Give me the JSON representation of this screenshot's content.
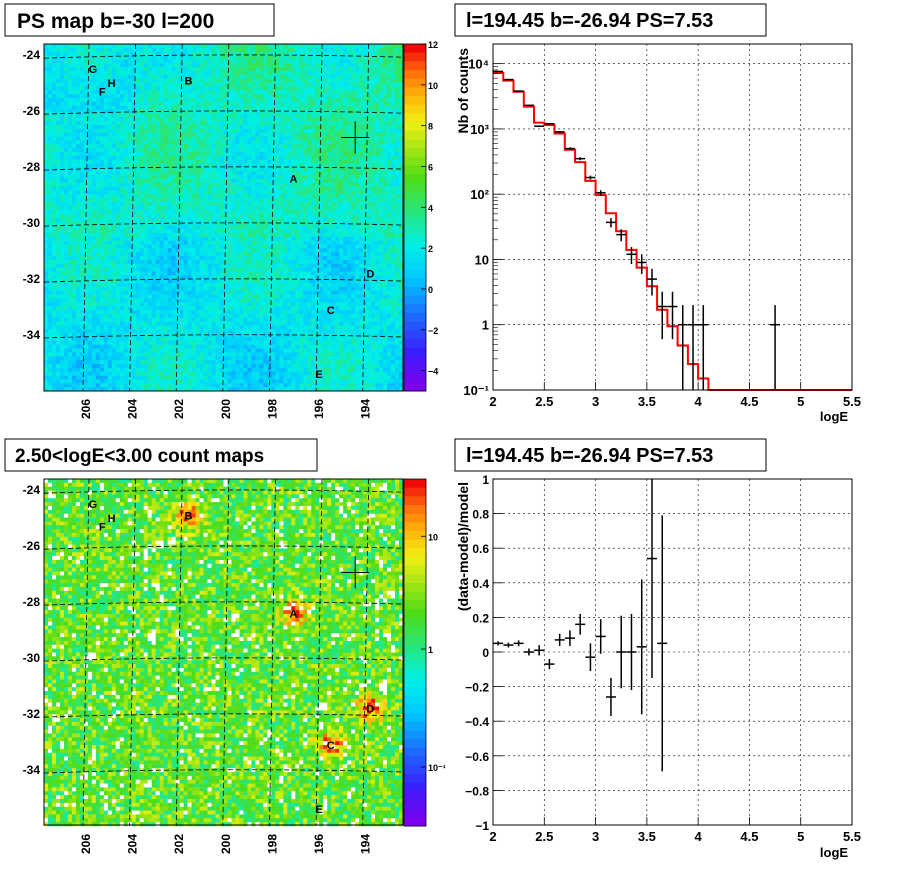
{
  "colors": {
    "background": "#ffffff",
    "axis": "#000000",
    "grid": "#000000",
    "model_line": "#ff0000",
    "data_points": "#000000"
  },
  "panels": {
    "ps_map": {
      "title": "PS map b=-30 l=200",
      "xlim": [
        207.8,
        192.4
      ],
      "ylim": [
        -36,
        -23.6
      ],
      "xticks": [
        "206",
        "204",
        "202",
        "200",
        "198",
        "196",
        "194"
      ],
      "yticks": [
        "-24",
        "-26",
        "-28",
        "-30",
        "-32",
        "-34"
      ],
      "colorbar_ticks": [
        "12",
        "10",
        "8",
        "6",
        "4",
        "2",
        "0",
        "−2",
        "−4"
      ],
      "colorbar_range": [
        -5,
        12
      ],
      "sources": [
        {
          "label": "G",
          "l": 205.7,
          "b": -24.5
        },
        {
          "label": "H",
          "l": 204.9,
          "b": -25.0
        },
        {
          "label": "F",
          "l": 205.3,
          "b": -25.3
        },
        {
          "label": "B",
          "l": 201.6,
          "b": -24.9
        },
        {
          "label": "A",
          "l": 197.1,
          "b": -28.4
        },
        {
          "label": "D",
          "l": 193.8,
          "b": -31.8
        },
        {
          "label": "C",
          "l": 195.5,
          "b": -33.1
        },
        {
          "label": "E",
          "l": 196.0,
          "b": -35.4
        }
      ],
      "marker": {
        "l": 194.45,
        "b": -26.94
      }
    },
    "spectrum": {
      "title": "l=194.45 b=-26.94 PS=7.53",
      "xlabel": "logE",
      "ylabel": "Nb of counts",
      "xticks": [
        "2",
        "2.5",
        "3",
        "3.5",
        "4",
        "4.5",
        "5",
        "5.5"
      ],
      "yticks": [
        "10⁻¹",
        "1",
        "10",
        "10²",
        "10³",
        "10⁴"
      ]
    },
    "count_map": {
      "title": "2.50<logE<3.00 count maps",
      "xticks": [
        "206",
        "204",
        "202",
        "200",
        "198",
        "196",
        "194"
      ],
      "yticks": [
        "-24",
        "-26",
        "-28",
        "-30",
        "-32",
        "-34"
      ],
      "colorbar_ticks": [
        "10",
        "1",
        "10⁻¹"
      ]
    },
    "residual": {
      "title": "l=194.45 b=-26.94 PS=7.53",
      "xlabel": "logE",
      "ylabel": "(data-model)/model",
      "xticks": [
        "2",
        "2.5",
        "3",
        "3.5",
        "4",
        "4.5",
        "5",
        "5.5"
      ],
      "yticks": [
        "1",
        "0.8",
        "0.6",
        "0.4",
        "0.2",
        "0",
        "−0.2",
        "−0.4",
        "−0.6",
        "−0.8",
        "−1"
      ]
    }
  },
  "chart_data": [
    {
      "type": "heatmap",
      "title": "PS map b=-30 l=200",
      "xlabel": "",
      "ylabel": "",
      "xlim": [
        207.8,
        192.4
      ],
      "ylim": [
        -36,
        -23.6
      ],
      "zlim": [
        -5,
        12
      ],
      "grid": true,
      "legend": "colorbar right"
    },
    {
      "type": "line",
      "title": "l=194.45 b=-26.94 PS=7.53",
      "xlabel": "logE",
      "ylabel": "Nb of counts",
      "xlim": [
        2,
        5.5
      ],
      "ylim": [
        0.1,
        20000
      ],
      "yscale": "log",
      "grid": true,
      "series": [
        {
          "style": "points",
          "x": [
            2.05,
            2.15,
            2.25,
            2.35,
            2.45,
            2.55,
            2.65,
            2.75,
            2.85,
            2.95,
            3.05,
            3.15,
            3.25,
            3.35,
            3.45,
            3.55,
            3.65,
            3.75,
            3.85,
            3.95,
            4.05,
            4.75
          ],
          "y": [
            7600,
            5700,
            3800,
            2300,
            1100,
            1200,
            900,
            500,
            350,
            180,
            105,
            37,
            24,
            12,
            9,
            5,
            1.9,
            1.9,
            1,
            1,
            1,
            1
          ],
          "yerr_low": [
            90,
            75,
            60,
            48,
            33,
            34,
            30,
            22,
            19,
            13,
            10,
            6,
            5,
            3.5,
            3,
            2.2,
            1.3,
            1.3,
            0.9,
            0.9,
            0.9,
            0.9
          ],
          "yerr_high": [
            90,
            75,
            60,
            48,
            33,
            34,
            30,
            22,
            19,
            13,
            10,
            6,
            5,
            3.5,
            3,
            2.2,
            1.3,
            1.3,
            1,
            1,
            1,
            1
          ]
        },
        {
          "style": "step",
          "edges": [
            2.0,
            2.1,
            2.2,
            2.3,
            2.4,
            2.5,
            2.6,
            2.7,
            2.8,
            2.9,
            3.0,
            3.1,
            3.2,
            3.3,
            3.4,
            3.5,
            3.6,
            3.7,
            3.8,
            3.9,
            4.0,
            4.1,
            5.5
          ],
          "values": [
            7200,
            5500,
            3700,
            2200,
            1250,
            1150,
            850,
            480,
            310,
            160,
            97,
            51,
            27,
            14,
            7.5,
            3.9,
            1.7,
            0.95,
            0.48,
            0.25,
            0.15,
            0.1
          ]
        }
      ]
    },
    {
      "type": "heatmap",
      "title": "2.50<logE<3.00 count maps",
      "xlabel": "",
      "ylabel": "",
      "xlim": [
        207.8,
        192.4
      ],
      "ylim": [
        -36,
        -23.6
      ],
      "zscale": "log",
      "grid": true,
      "legend": "colorbar right"
    },
    {
      "type": "scatter",
      "title": "l=194.45 b=-26.94 PS=7.53",
      "xlabel": "logE",
      "ylabel": "(data-model)/model",
      "xlim": [
        2,
        5.5
      ],
      "ylim": [
        -1,
        1
      ],
      "grid": true,
      "x": [
        2.05,
        2.15,
        2.25,
        2.35,
        2.45,
        2.55,
        2.65,
        2.75,
        2.85,
        2.95,
        3.05,
        3.15,
        3.25,
        3.35,
        3.45,
        3.55,
        3.65
      ],
      "y": [
        0.05,
        0.04,
        0.05,
        0.0,
        0.01,
        -0.07,
        0.07,
        0.08,
        0.16,
        -0.03,
        0.09,
        -0.26,
        0.0,
        0.0,
        0.03,
        0.54,
        0.05
      ],
      "yerr": [
        0.012,
        0.014,
        0.017,
        0.02,
        0.03,
        0.03,
        0.035,
        0.045,
        0.06,
        0.08,
        0.1,
        0.11,
        0.21,
        0.22,
        0.39,
        0.69,
        0.74
      ]
    }
  ]
}
